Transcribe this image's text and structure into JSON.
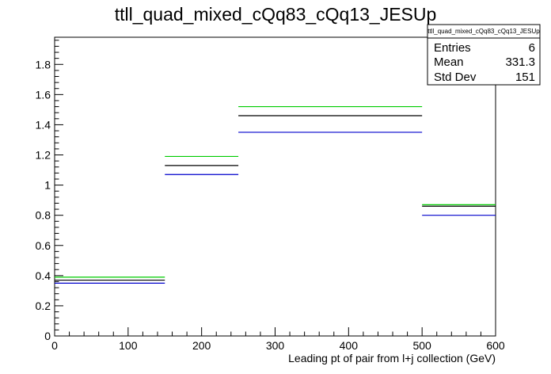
{
  "chart_data": {
    "type": "step",
    "title": "ttll_quad_mixed_cQq83_cQq13_JESUp",
    "xlabel": "Leading pt of pair from l+j collection (GeV)",
    "ylabel": "",
    "xlim": [
      0,
      600
    ],
    "ylim": [
      0,
      1.98
    ],
    "x_ticks": [
      0,
      100,
      200,
      300,
      400,
      500,
      600
    ],
    "y_ticks": [
      0,
      0.2,
      0.4,
      0.6,
      0.8,
      1,
      1.2,
      1.4,
      1.6,
      1.8
    ],
    "x_tick_labels": [
      "0",
      "100",
      "200",
      "300",
      "400",
      "500",
      "600"
    ],
    "y_tick_labels": [
      "0",
      "0.2",
      "0.4",
      "0.6",
      "0.8",
      "1",
      "1.2",
      "1.4",
      "1.6",
      "1.8"
    ],
    "bin_edges": [
      0,
      150,
      250,
      500,
      600
    ],
    "grid": false,
    "series": [
      {
        "color": "#00cc00",
        "values": [
          0.39,
          1.19,
          1.52,
          0.87
        ]
      },
      {
        "color": "#000000",
        "values": [
          0.37,
          1.13,
          1.46,
          0.86
        ]
      },
      {
        "color": "#0000cc",
        "values": [
          0.35,
          1.07,
          1.35,
          0.8
        ]
      }
    ],
    "stats_box": {
      "title": "ttll_quad_mixed_cQq83_cQq13_JESUp",
      "rows": [
        {
          "label": "Entries",
          "value": "6"
        },
        {
          "label": "Mean",
          "value": "331.3"
        },
        {
          "label": "Std Dev",
          "value": "151"
        }
      ]
    }
  }
}
